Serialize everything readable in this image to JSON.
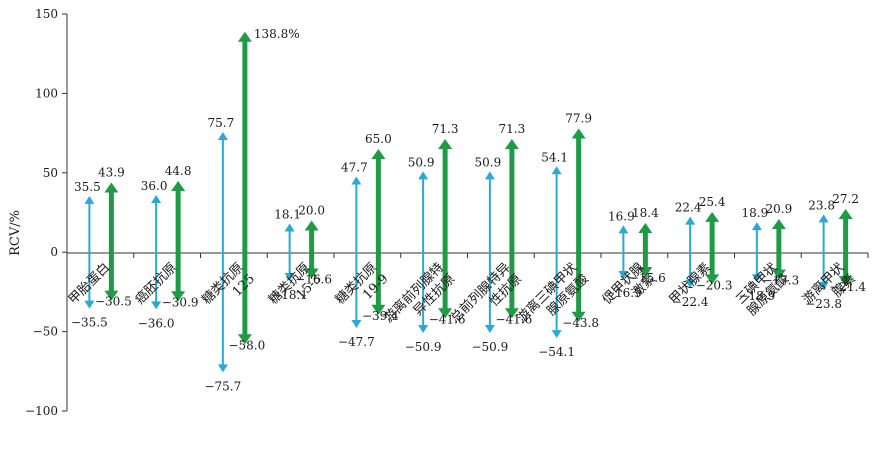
{
  "chart_data": {
    "type": "bar",
    "ylabel": "RCV/%",
    "ylim": [
      -100,
      150
    ],
    "yticks": [
      150,
      100,
      50,
      0,
      -50,
      -100
    ],
    "ytick_labels": [
      "150",
      "100",
      "50",
      "0",
      "−50",
      "−100"
    ],
    "grid": false,
    "legend": "none",
    "categories": [
      [
        "甲胎蛋白"
      ],
      [
        "癌胚抗原"
      ],
      [
        "糖类抗原",
        "125"
      ],
      [
        "糖类抗原",
        "15-3"
      ],
      [
        "糖类抗原",
        "19-9"
      ],
      [
        "游离前列腺特",
        "异性抗原"
      ],
      [
        "总前列腺特异",
        "性抗原"
      ],
      [
        "游离三碘甲状",
        "腺原氨酸"
      ],
      [
        "促甲状腺",
        "激素"
      ],
      [
        "甲状腺素"
      ],
      [
        "三碘甲状",
        "腺原氨酸"
      ],
      [
        "游离甲状",
        "腺素"
      ]
    ],
    "series": [
      {
        "color": "#2aa9d6",
        "upper": [
          35.5,
          36.0,
          75.7,
          18.1,
          47.7,
          50.9,
          50.9,
          54.1,
          16.9,
          22.4,
          18.9,
          23.8
        ],
        "lower": [
          -35.5,
          -36.0,
          -75.7,
          -18.1,
          -47.7,
          -50.9,
          -50.9,
          -54.1,
          -16.9,
          -22.4,
          -18.9,
          -23.8
        ],
        "upper_labels": [
          "35.5",
          "36.0",
          "75.7",
          "18.1",
          "47.7",
          "50.9",
          "50.9",
          "54.1",
          "16.9",
          "22.4",
          "18.9",
          "23.8"
        ],
        "lower_labels": [
          "−35.5",
          "−36.0",
          "−75.7",
          "−18.1",
          "−47.7",
          "−50.9",
          "−50.9",
          "−54.1",
          "−16.9",
          "−22.4",
          "−18.9",
          "−23.8"
        ]
      },
      {
        "color": "#1f9b45",
        "upper": [
          43.9,
          44.8,
          138.8,
          20.0,
          65.0,
          71.3,
          71.3,
          77.9,
          18.4,
          25.4,
          20.9,
          27.2
        ],
        "lower": [
          -30.5,
          -30.9,
          -58.0,
          -16.6,
          -39.4,
          -41.6,
          -41.6,
          -43.8,
          -15.6,
          -20.3,
          -17.3,
          -21.4
        ],
        "upper_labels": [
          "43.9",
          "44.8",
          "138.8%",
          "20.0",
          "65.0",
          "71.3",
          "71.3",
          "77.9",
          "18.4",
          "25.4",
          "20.9",
          "27.2"
        ],
        "lower_labels": [
          "−30.5",
          "−30.9",
          "−58.0",
          "−16.6",
          "−39.4",
          "−41.6",
          "−41.6",
          "−43.8",
          "−15.6",
          "−20.3",
          "−17.3",
          "−21.4"
        ]
      }
    ]
  }
}
